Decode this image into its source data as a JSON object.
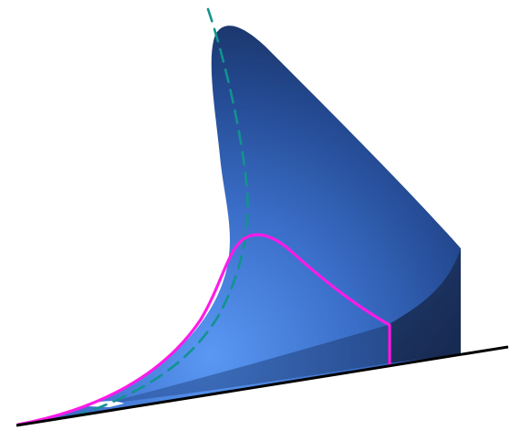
{
  "figure": {
    "background": "#ffffff",
    "colors": {
      "surface_light": "#5a98f4",
      "surface_mid": "#3a6ec8",
      "surface_dark": "#1f3f7e",
      "surface_darkest": "#172c57",
      "side_face": "#1b2f58",
      "magenta_curve": "#ff1ae8",
      "teal_dashed_curve": "#12938f",
      "baseline": "#000000",
      "highlight": "#ffffff"
    }
  }
}
